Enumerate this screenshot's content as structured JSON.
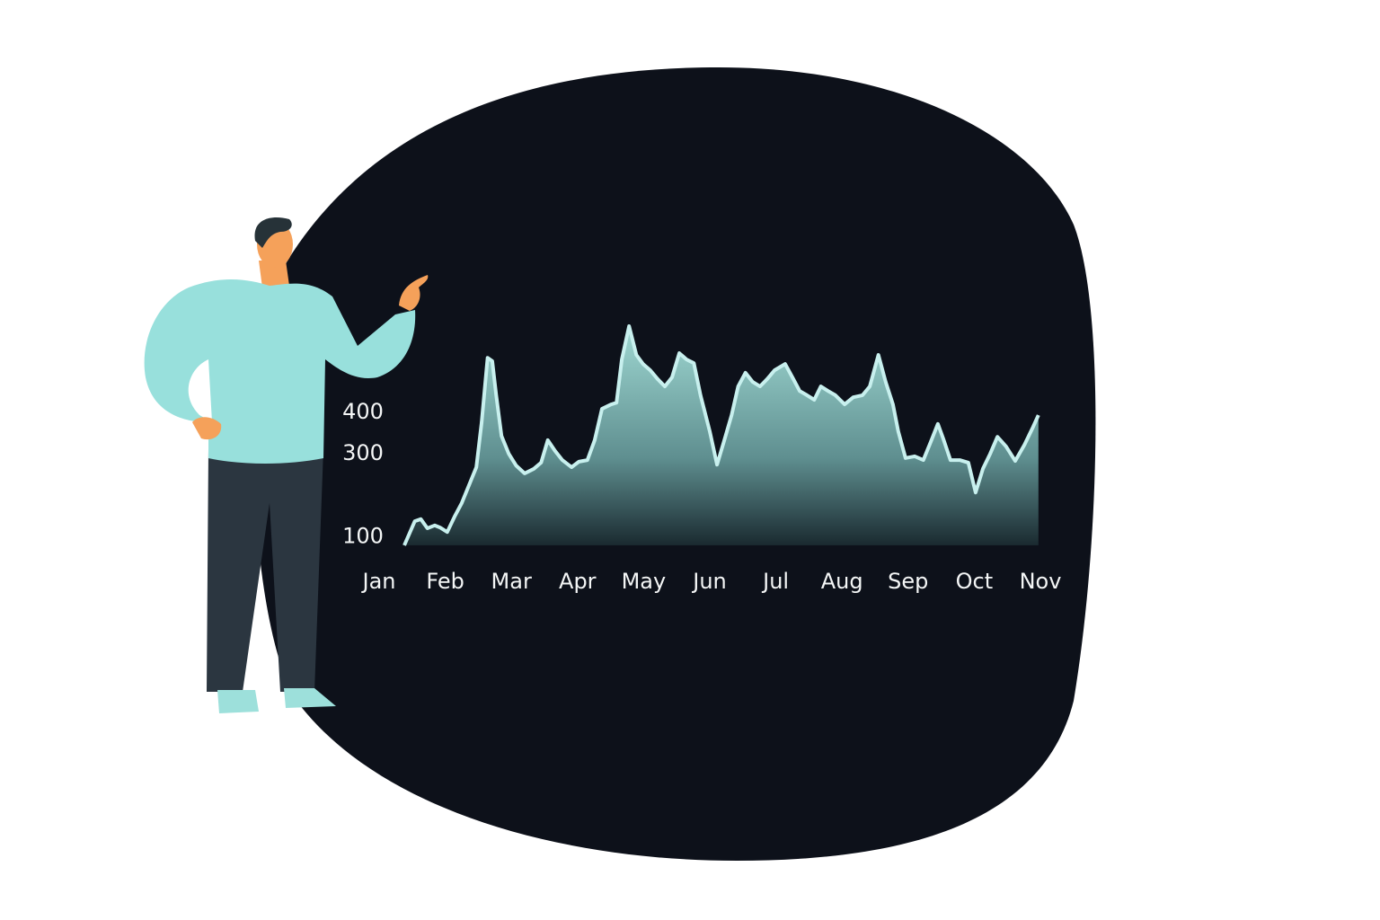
{
  "chart_data": {
    "type": "area",
    "x": [
      0.38,
      0.54,
      0.63,
      0.73,
      0.84,
      0.92,
      1.03,
      1.14,
      1.25,
      1.36,
      1.47,
      1.55,
      1.64,
      1.71,
      1.77,
      1.85,
      1.96,
      2.07,
      2.2,
      2.34,
      2.45,
      2.55,
      2.66,
      2.77,
      2.91,
      3.02,
      3.15,
      3.26,
      3.37,
      3.51,
      3.59,
      3.67,
      3.78,
      3.89,
      3.99,
      4.1,
      4.21,
      4.32,
      4.43,
      4.54,
      4.65,
      4.76,
      4.86,
      5.0,
      5.11,
      5.22,
      5.33,
      5.43,
      5.54,
      5.65,
      5.76,
      5.87,
      5.98,
      6.14,
      6.25,
      6.36,
      6.47,
      6.58,
      6.68,
      6.79,
      6.9,
      7.04,
      7.17,
      7.31,
      7.42,
      7.55,
      7.66,
      7.77,
      7.85,
      7.96,
      8.1,
      8.23,
      8.34,
      8.45,
      8.53,
      8.64,
      8.78,
      8.91,
      9.02,
      9.13,
      9.24,
      9.35,
      9.48,
      9.62,
      9.76,
      9.89,
      9.97
    ],
    "values": [
      80,
      138,
      143,
      121,
      128,
      123,
      112,
      149,
      182,
      225,
      268,
      376,
      531,
      523,
      441,
      343,
      300,
      272,
      253,
      264,
      279,
      333,
      307,
      285,
      268,
      281,
      285,
      333,
      408,
      419,
      423,
      527,
      607,
      538,
      516,
      501,
      480,
      462,
      484,
      542,
      527,
      518,
      441,
      354,
      274,
      333,
      393,
      462,
      495,
      473,
      462,
      480,
      501,
      516,
      484,
      451,
      441,
      430,
      462,
      451,
      441,
      419,
      436,
      441,
      462,
      538,
      473,
      419,
      354,
      290,
      294,
      285,
      328,
      372,
      337,
      285,
      285,
      279,
      207,
      264,
      300,
      341,
      318,
      283,
      322,
      365,
      393
    ],
    "color": "#c8f0ee",
    "xlim": [
      0,
      10
    ],
    "xticks": [
      {
        "value": 0,
        "label": "Jan"
      },
      {
        "value": 1,
        "label": "Feb"
      },
      {
        "value": 2,
        "label": "Mar"
      },
      {
        "value": 3,
        "label": "Apr"
      },
      {
        "value": 4,
        "label": "May"
      },
      {
        "value": 5,
        "label": "Jun"
      },
      {
        "value": 6,
        "label": "Jul"
      },
      {
        "value": 7,
        "label": "Aug"
      },
      {
        "value": 8,
        "label": "Sep"
      },
      {
        "value": 9,
        "label": "Oct"
      },
      {
        "value": 10,
        "label": "Nov"
      }
    ],
    "ylim": [
      80,
      620
    ],
    "yticks": [
      100,
      300,
      400
    ],
    "grid": false
  }
}
